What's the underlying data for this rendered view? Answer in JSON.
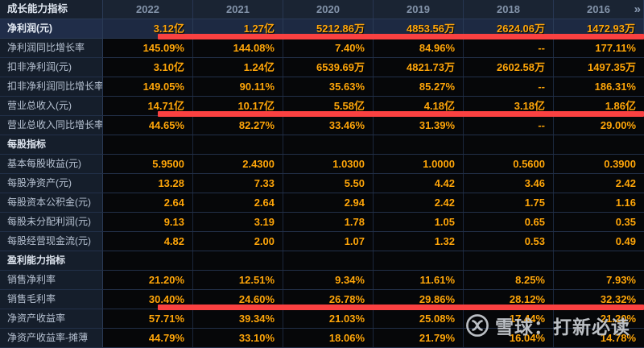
{
  "header": {
    "label": "成长能力指标",
    "years": [
      "2022",
      "2021",
      "2020",
      "2019",
      "2018",
      "2016"
    ],
    "more_icon": "»"
  },
  "rows": [
    {
      "label": "净利润(元)",
      "highlight": true,
      "underline": true,
      "values": [
        "3.12亿",
        "1.27亿",
        "5212.86万",
        "4853.56万",
        "2624.06万",
        "1472.93万"
      ]
    },
    {
      "label": "净利润同比增长率",
      "values": [
        "145.09%",
        "144.08%",
        "7.40%",
        "84.96%",
        "--",
        "177.11%"
      ]
    },
    {
      "label": "扣非净利润(元)",
      "values": [
        "3.10亿",
        "1.24亿",
        "6539.69万",
        "4821.73万",
        "2602.58万",
        "1497.35万"
      ]
    },
    {
      "label": "扣非净利润同比增长率",
      "values": [
        "149.05%",
        "90.11%",
        "35.63%",
        "85.27%",
        "--",
        "186.31%"
      ]
    },
    {
      "label": "营业总收入(元)",
      "underline": true,
      "values": [
        "14.71亿",
        "10.17亿",
        "5.58亿",
        "4.18亿",
        "3.18亿",
        "1.86亿"
      ]
    },
    {
      "label": "营业总收入同比增长率",
      "values": [
        "44.65%",
        "82.27%",
        "33.46%",
        "31.39%",
        "--",
        "29.00%"
      ]
    },
    {
      "label": "每股指标",
      "section": true,
      "values": [
        "",
        "",
        "",
        "",
        "",
        ""
      ]
    },
    {
      "label": "基本每股收益(元)",
      "values": [
        "5.9500",
        "2.4300",
        "1.0300",
        "1.0000",
        "0.5600",
        "0.3900"
      ]
    },
    {
      "label": "每股净资产(元)",
      "values": [
        "13.28",
        "7.33",
        "5.50",
        "4.42",
        "3.46",
        "2.42"
      ]
    },
    {
      "label": "每股资本公积金(元)",
      "values": [
        "2.64",
        "2.64",
        "2.94",
        "2.42",
        "1.75",
        "1.16"
      ]
    },
    {
      "label": "每股未分配利润(元)",
      "values": [
        "9.13",
        "3.19",
        "1.78",
        "1.05",
        "0.65",
        "0.35"
      ]
    },
    {
      "label": "每股经营现金流(元)",
      "values": [
        "4.82",
        "2.00",
        "1.07",
        "1.32",
        "0.53",
        "0.49"
      ]
    },
    {
      "label": "盈利能力指标",
      "section": true,
      "values": [
        "",
        "",
        "",
        "",
        "",
        ""
      ]
    },
    {
      "label": "销售净利率",
      "values": [
        "21.20%",
        "12.51%",
        "9.34%",
        "11.61%",
        "8.25%",
        "7.93%"
      ]
    },
    {
      "label": "销售毛利率",
      "underline": true,
      "values": [
        "30.40%",
        "24.60%",
        "26.78%",
        "29.86%",
        "28.12%",
        "32.32%"
      ]
    },
    {
      "label": "净资产收益率",
      "values": [
        "57.71%",
        "39.34%",
        "21.03%",
        "25.08%",
        "17.44%",
        "21.20%"
      ]
    },
    {
      "label": "净资产收益率-摊薄",
      "values": [
        "44.79%",
        "33.10%",
        "18.06%",
        "21.79%",
        "16.04%",
        "14.78%"
      ]
    }
  ],
  "watermark": {
    "text": "雪球：打新必读"
  },
  "colors": {
    "value_orange": "#ffa60a",
    "annotation_red": "#fa4141",
    "highlight_row_bg": "#1d2942",
    "header_bg": "#1a2433",
    "label_col_bg": "#151e2b",
    "grid_line": "#223049",
    "label_text": "#b7c2d2",
    "year_text": "#8393a9",
    "watermark_text": "#c9cdd3"
  }
}
